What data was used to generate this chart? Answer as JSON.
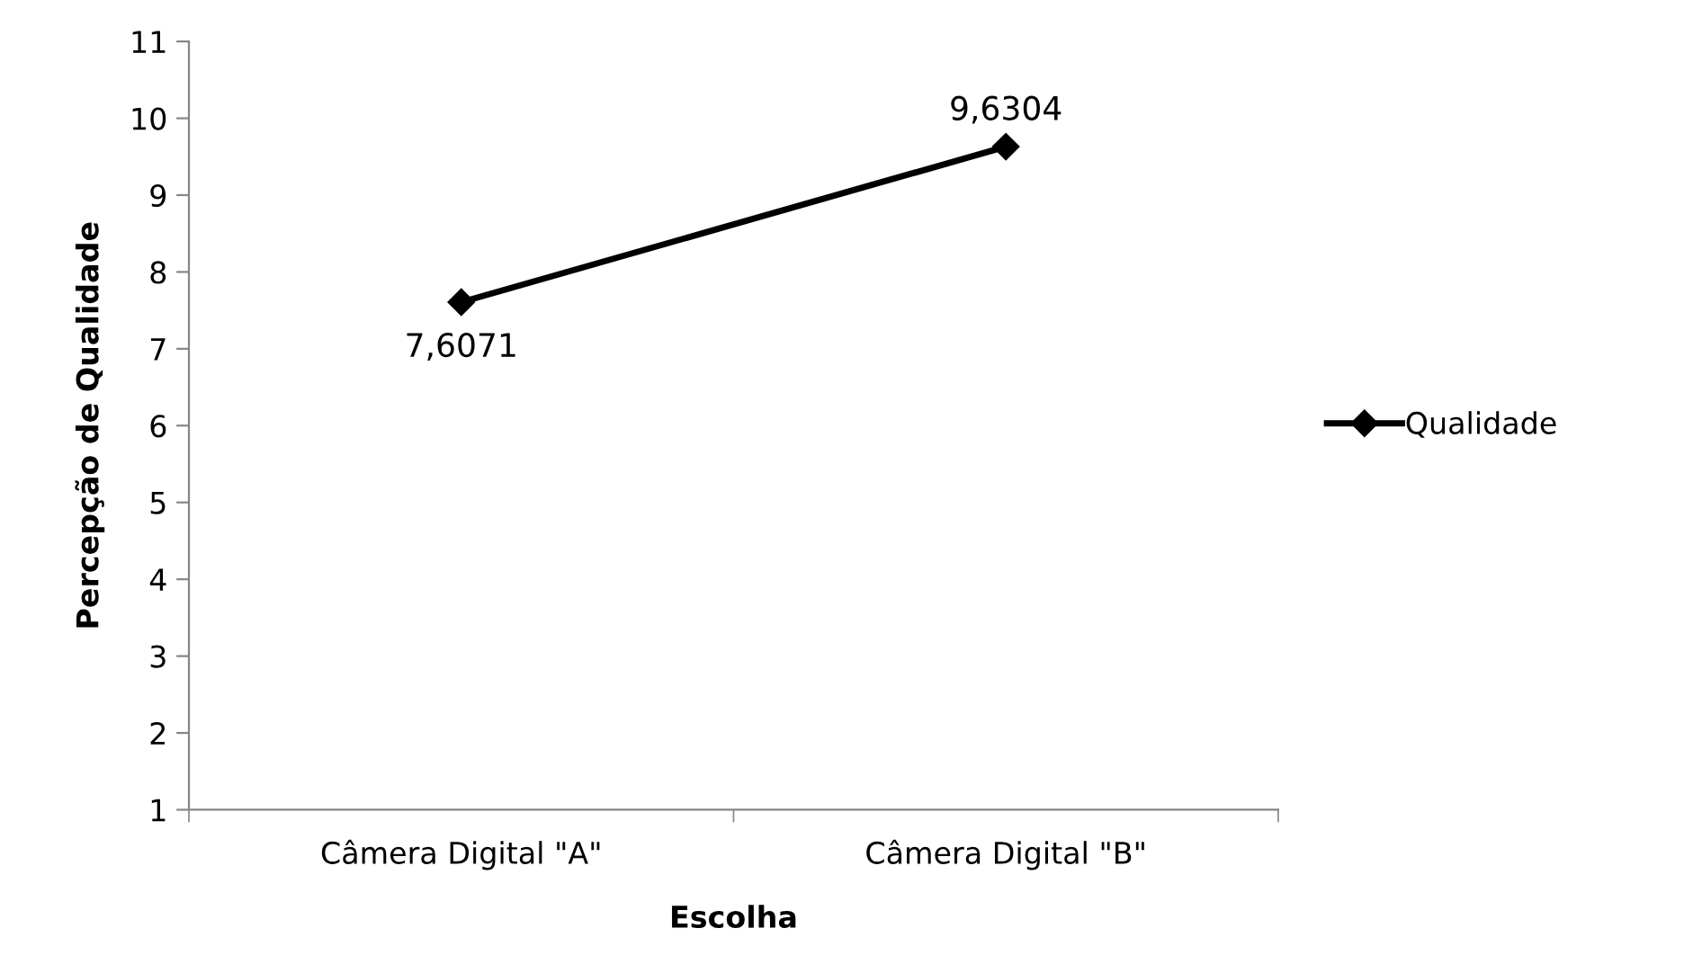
{
  "chart_data": {
    "type": "line",
    "xlabel": "Escolha",
    "ylabel": "Percepção de Qualidade",
    "categories": [
      "Câmera Digital \"A\"",
      "Câmera Digital \"B\""
    ],
    "series": [
      {
        "name": "Qualidade",
        "color": "#000000",
        "values": [
          7.6071,
          9.6304
        ],
        "value_labels": [
          "7,6071",
          "9,6304"
        ]
      }
    ],
    "ylim": [
      1,
      11
    ],
    "yticks": [
      1,
      2,
      3,
      4,
      5,
      6,
      7,
      8,
      9,
      10,
      11
    ],
    "grid": false,
    "legend": "right",
    "marker": "diamond",
    "line_style": "solid"
  }
}
